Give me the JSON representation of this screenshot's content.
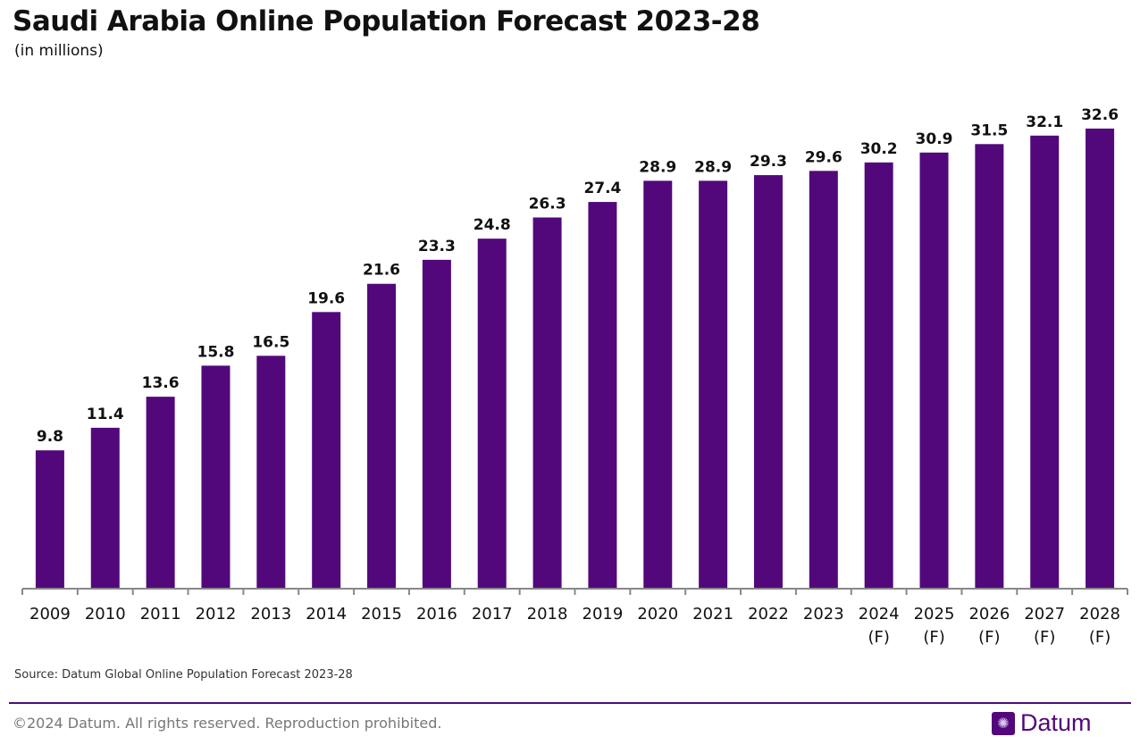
{
  "title": "Saudi Arabia Online Population Forecast 2023-28",
  "subtitle": "(in millions)",
  "source": "Source: Datum Global Online Population Forecast 2023-28",
  "footer": {
    "copyright": "©2024 Datum. All rights reserved. Reproduction prohibited.",
    "logo_text": "Datum",
    "logo_icon": "globe-icon"
  },
  "colors": {
    "bar": "#52087a",
    "rule": "#4b0f74"
  },
  "chart_data": {
    "type": "bar",
    "title": "Saudi Arabia Online Population Forecast 2023-28",
    "subtitle": "(in millions)",
    "categories": [
      "2009",
      "2010",
      "2011",
      "2012",
      "2013",
      "2014",
      "2015",
      "2016",
      "2017",
      "2018",
      "2019",
      "2020",
      "2021",
      "2022",
      "2023",
      "2024\n(F)",
      "2025\n(F)",
      "2026\n(F)",
      "2027\n(F)",
      "2028\n(F)"
    ],
    "values": [
      9.8,
      11.4,
      13.6,
      15.8,
      16.5,
      19.6,
      21.6,
      23.3,
      24.8,
      26.3,
      27.4,
      28.9,
      28.9,
      29.3,
      29.6,
      30.2,
      30.9,
      31.5,
      32.1,
      32.6
    ],
    "data_labels": [
      "9.8",
      "11.4",
      "13.6",
      "15.8",
      "16.5",
      "19.6",
      "21.6",
      "23.3",
      "24.8",
      "26.3",
      "27.4",
      "28.9",
      "28.9",
      "29.3",
      "29.6",
      "30.2",
      "30.9",
      "31.5",
      "32.1",
      "32.6"
    ],
    "ylim": [
      0,
      35
    ],
    "grid": false,
    "y_axis_visible": false
  }
}
